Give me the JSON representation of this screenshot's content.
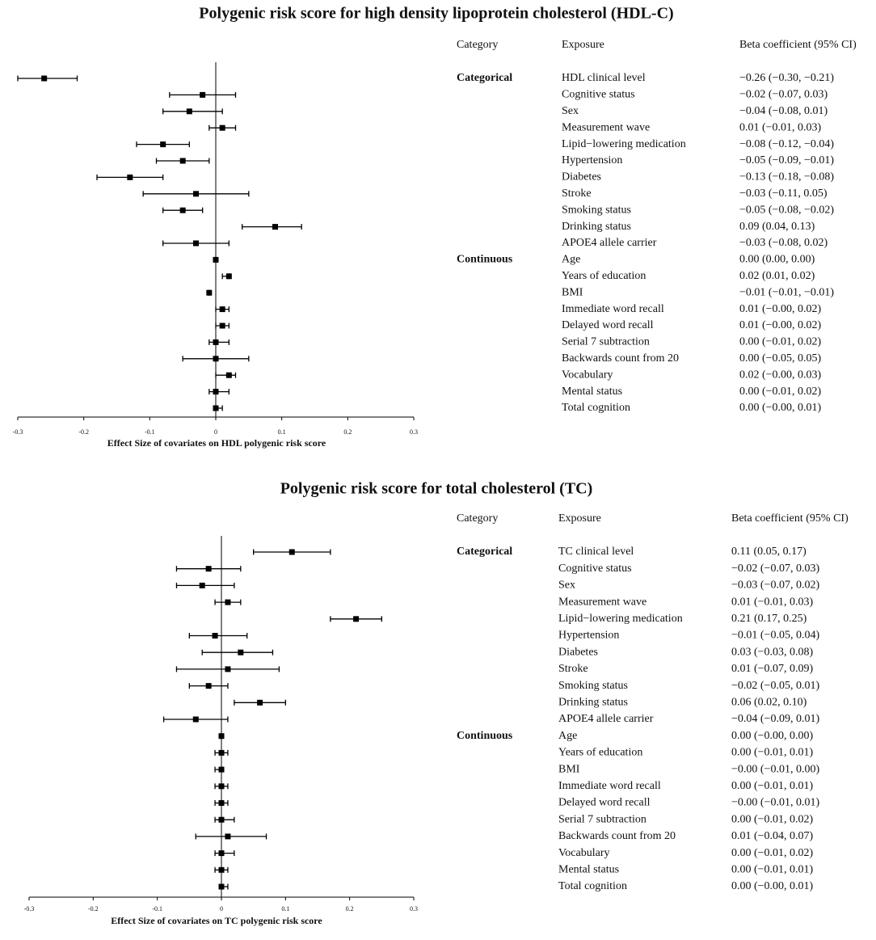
{
  "chart_data": [
    {
      "type": "forest",
      "title": "Polygenic risk score for high density lipoprotein cholesterol (HDL-C)",
      "x_label": "Effect Size of covariates on HDL polygenic risk score",
      "column_headers": {
        "category": "Category",
        "exposure": "Exposure",
        "estimate": "Beta coefficient (95% CI)"
      },
      "category_groups": [
        "Categorical",
        null,
        null,
        null,
        null,
        null,
        null,
        null,
        null,
        null,
        null,
        "Continuous",
        null,
        null,
        null,
        null,
        null,
        null,
        null,
        null,
        null
      ],
      "categories": [
        "HDL clinical level",
        "Cognitive status",
        "Sex",
        "Measurement wave",
        "Lipid−lowering medication",
        "Hypertension",
        "Diabetes",
        "Stroke",
        "Smoking status",
        "Drinking status",
        "APOE4 allele carrier",
        "Age",
        "Years of education",
        "BMI",
        "Immediate word recall",
        "Delayed word recall",
        "Serial 7 subtraction",
        "Backwards count from 20",
        "Vocabulary",
        "Mental status",
        "Total cognition"
      ],
      "values": [
        -0.26,
        -0.02,
        -0.04,
        0.01,
        -0.08,
        -0.05,
        -0.13,
        -0.03,
        -0.05,
        0.09,
        -0.03,
        0,
        0.02,
        -0.01,
        0.01,
        0.01,
        0,
        0,
        0.02,
        0,
        0
      ],
      "lower": [
        -0.3,
        -0.07,
        -0.08,
        -0.01,
        -0.12,
        -0.09,
        -0.18,
        -0.11,
        -0.08,
        0.04,
        -0.08,
        0,
        0.01,
        -0.01,
        0,
        0,
        -0.01,
        -0.05,
        0,
        -0.01,
        0
      ],
      "upper": [
        -0.21,
        0.03,
        0.01,
        0.03,
        -0.04,
        -0.01,
        -0.08,
        0.05,
        -0.02,
        0.13,
        0.02,
        0,
        0.02,
        -0.01,
        0.02,
        0.02,
        0.02,
        0.05,
        0.03,
        0.02,
        0.01
      ],
      "value_labels": [
        "−0.26 (−0.30, −0.21)",
        "−0.02 (−0.07, 0.03)",
        "−0.04 (−0.08, 0.01)",
        "0.01 (−0.01, 0.03)",
        "−0.08 (−0.12, −0.04)",
        "−0.05 (−0.09, −0.01)",
        "−0.13 (−0.18, −0.08)",
        "−0.03 (−0.11, 0.05)",
        "−0.05 (−0.08, −0.02)",
        "0.09 (0.04, 0.13)",
        "−0.03 (−0.08, 0.02)",
        "0.00 (0.00, 0.00)",
        "0.02 (0.01, 0.02)",
        "−0.01 (−0.01, −0.01)",
        "0.01 (−0.00, 0.02)",
        "0.01 (−0.00, 0.02)",
        "0.00 (−0.01, 0.02)",
        "0.00 (−0.05, 0.05)",
        "0.02 (−0.00, 0.03)",
        "0.00 (−0.01, 0.02)",
        "0.00 (−0.00, 0.01)"
      ],
      "xlim": [
        -0.3,
        0.3
      ],
      "xticks": [
        -0.3,
        -0.2,
        -0.1,
        0,
        0.1,
        0.2,
        0.3
      ],
      "color": "#000000"
    },
    {
      "type": "forest",
      "title": "Polygenic risk score for total cholesterol (TC)",
      "x_label": "Effect Size of covariates on TC polygenic risk score",
      "column_headers": {
        "category": "Category",
        "exposure": "Exposure",
        "estimate": "Beta coefficient (95% CI)"
      },
      "category_groups": [
        "Categorical",
        null,
        null,
        null,
        null,
        null,
        null,
        null,
        null,
        null,
        null,
        "Continuous",
        null,
        null,
        null,
        null,
        null,
        null,
        null,
        null,
        null
      ],
      "categories": [
        "TC clinical level",
        "Cognitive status",
        "Sex",
        "Measurement wave",
        "Lipid−lowering medication",
        "Hypertension",
        "Diabetes",
        "Stroke",
        "Smoking status",
        "Drinking status",
        "APOE4 allele carrier",
        "Age",
        "Years of education",
        "BMI",
        "Immediate word recall",
        "Delayed word recall",
        "Serial 7 subtraction",
        "Backwards count from 20",
        "Vocabulary",
        "Mental status",
        "Total cognition"
      ],
      "values": [
        0.11,
        -0.02,
        -0.03,
        0.01,
        0.21,
        -0.01,
        0.03,
        0.01,
        -0.02,
        0.06,
        -0.04,
        0,
        0,
        0,
        0,
        0,
        0,
        0.01,
        0,
        0,
        0
      ],
      "lower": [
        0.05,
        -0.07,
        -0.07,
        -0.01,
        0.17,
        -0.05,
        -0.03,
        -0.07,
        -0.05,
        0.02,
        -0.09,
        0,
        -0.01,
        -0.01,
        -0.01,
        -0.01,
        -0.01,
        -0.04,
        -0.01,
        -0.01,
        0
      ],
      "upper": [
        0.17,
        0.03,
        0.02,
        0.03,
        0.25,
        0.04,
        0.08,
        0.09,
        0.01,
        0.1,
        0.01,
        0,
        0.01,
        0,
        0.01,
        0.01,
        0.02,
        0.07,
        0.02,
        0.01,
        0.01
      ],
      "value_labels": [
        "0.11 (0.05, 0.17)",
        "−0.02 (−0.07, 0.03)",
        "−0.03 (−0.07, 0.02)",
        "0.01 (−0.01, 0.03)",
        "0.21 (0.17, 0.25)",
        "−0.01 (−0.05, 0.04)",
        "0.03 (−0.03, 0.08)",
        "0.01 (−0.07, 0.09)",
        "−0.02 (−0.05, 0.01)",
        "0.06 (0.02, 0.10)",
        "−0.04 (−0.09, 0.01)",
        "0.00 (−0.00, 0.00)",
        "0.00 (−0.01, 0.01)",
        "−0.00 (−0.01, 0.00)",
        "0.00 (−0.01, 0.01)",
        "−0.00 (−0.01, 0.01)",
        "0.00 (−0.01, 0.02)",
        "0.01 (−0.04, 0.07)",
        "0.00 (−0.01, 0.02)",
        "0.00 (−0.01, 0.01)",
        "0.00 (−0.00, 0.01)"
      ],
      "xlim": [
        -0.3,
        0.3
      ],
      "xticks": [
        -0.3,
        -0.2,
        -0.1,
        0,
        0.1,
        0.2,
        0.3
      ],
      "color": "#000000"
    }
  ]
}
